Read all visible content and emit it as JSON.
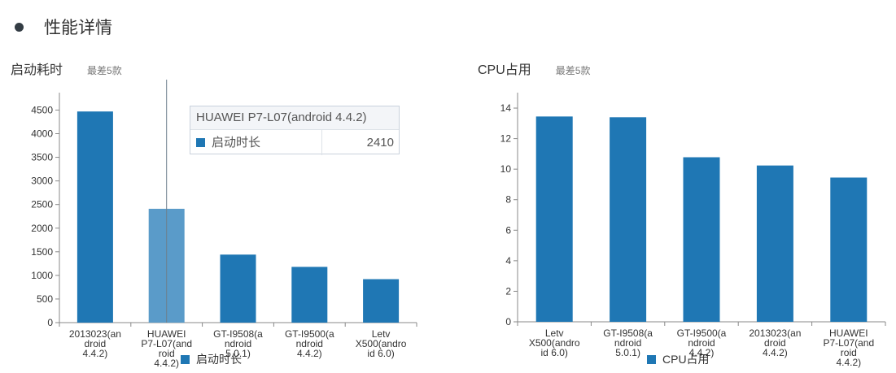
{
  "section": {
    "title": "性能详情"
  },
  "chart_data": [
    {
      "type": "bar",
      "title": "启动耗时",
      "subtitle": "最差5款",
      "categories": [
        "2013023(android 4.4.2)",
        "HUAWEI P7-L07(android 4.4.2)",
        "GT-I9508(android 5.0.1)",
        "GT-I9500(android 4.4.2)",
        "Letv X500(android 6.0)"
      ],
      "category_lines": [
        [
          "2013023(an",
          "droid",
          "4.4.2)"
        ],
        [
          "HUAWEI",
          "P7-L07(and",
          "roid",
          "4.4.2)"
        ],
        [
          "GT-I9508(a",
          "ndroid",
          "5.0.1)"
        ],
        [
          "GT-I9500(a",
          "ndroid",
          "4.4.2)"
        ],
        [
          "Letv",
          "X500(andro",
          "id 6.0)"
        ]
      ],
      "series": [
        {
          "name": "启动时长",
          "values": [
            4470,
            2410,
            1440,
            1180,
            920
          ],
          "color": "#1f77b4"
        }
      ],
      "ylim": [
        0,
        4800
      ],
      "yticks": [
        0,
        500,
        1000,
        1500,
        2000,
        2500,
        3000,
        3500,
        4000,
        4500
      ],
      "highlight_index": 1,
      "highlight_color": "#5a9bc9",
      "tooltip": {
        "title": "HUAWEI P7-L07(android 4.4.2)",
        "label": "启动时长",
        "value": "2410"
      },
      "legend": {
        "label": "启动时长",
        "placement": "bottom-center"
      }
    },
    {
      "type": "bar",
      "title": "CPU占用",
      "subtitle": "最差5款",
      "categories": [
        "Letv X500(android 6.0)",
        "GT-I9508(android 5.0.1)",
        "GT-I9500(android 4.4.2)",
        "2013023(android 4.4.2)",
        "HUAWEI P7-L07(android 4.4.2)"
      ],
      "category_lines": [
        [
          "Letv",
          "X500(andro",
          "id 6.0)"
        ],
        [
          "GT-I9508(a",
          "ndroid",
          "5.0.1)"
        ],
        [
          "GT-I9500(a",
          "ndroid",
          "4.4.2)"
        ],
        [
          "2013023(an",
          "droid",
          "4.4.2)"
        ],
        [
          "HUAWEI",
          "P7-L07(and",
          "roid",
          "4.4.2)"
        ]
      ],
      "series": [
        {
          "name": "CPU占用",
          "values": [
            13.45,
            13.4,
            10.78,
            10.24,
            9.45
          ],
          "color": "#1f77b4"
        }
      ],
      "ylim": [
        0,
        14.8
      ],
      "yticks": [
        0,
        2,
        4,
        6,
        8,
        10,
        12,
        14
      ],
      "legend": {
        "label": "CPU占用",
        "placement": "bottom-center"
      }
    }
  ]
}
